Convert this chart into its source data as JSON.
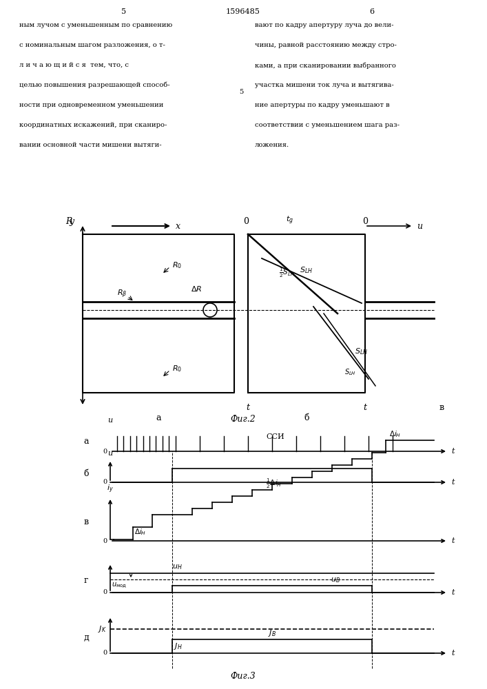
{
  "bg_color": "#ffffff",
  "line_color": "#000000",
  "page_header": "1596485",
  "page_left_num": "5",
  "page_right_num": "6",
  "text_left": "ным лучом с уменьшенным по сравнению\nс номинальным шагом разложения, о т-\nл и ч а ю щ и й с я  тем, что, с\nцелью повышения разрешающей способ-\nности при одновременном уменьшении\nкоординатных искажений, при сканиро-\nвании основной части мишени вытяги-",
  "text_right": "вают по кадру апертуру луча до вели-\nчины, равной расстоянию между стро-\nками, а при сканировании выбранного\nучастка мишени ток луча и вытягива-\nние апертуры по кадру уменьшают в\nсоответствии с уменьшением шага раз-\nложения.",
  "middle_5": "5",
  "fig2_caption": "Фиг.2",
  "fig3_caption": "Фиг.3"
}
